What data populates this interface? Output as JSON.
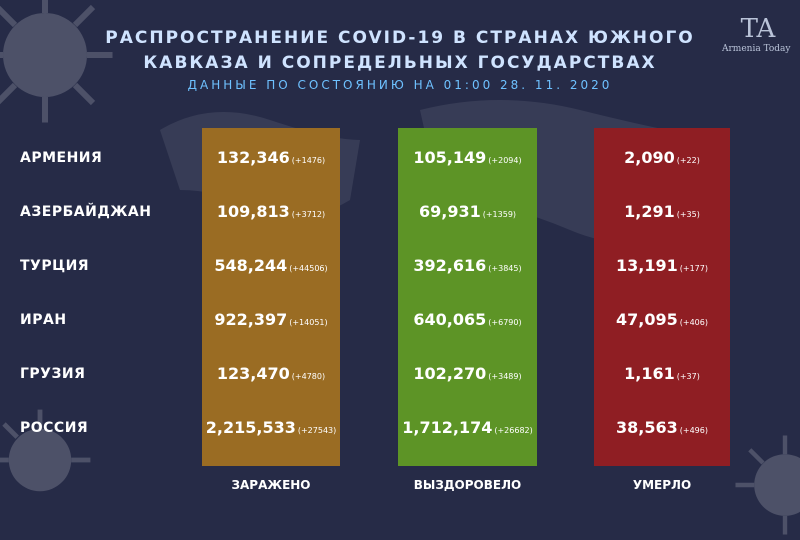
{
  "header": {
    "title_line1": "РАСПРОСТРАНЕНИЕ COVID-19 В СТРАНАХ ЮЖНОГО",
    "title_line2": "КАВКАЗА И СОПРЕДЕЛЬНЫХ ГОСУДАРСТВАХ",
    "subtitle": "ДАННЫЕ ПО СОСТОЯНИЮ НА 01:00   28. 11. 2020"
  },
  "logo": {
    "mark": "TA",
    "text": "Armenia Today"
  },
  "columns": {
    "infected": "ЗАРАЖЕНО",
    "recovered": "ВЫЗДОРОВЕЛО",
    "died": "УМЕРЛО"
  },
  "colors": {
    "infected": "#9a6c23",
    "recovered": "#5d9426",
    "died": "#8f1e23",
    "background": "#262b47"
  },
  "rows": [
    {
      "country": "АРМЕНИЯ",
      "infected": "132,346",
      "infected_delta": "(+1476)",
      "recovered": "105,149",
      "recovered_delta": "(+2094)",
      "died": "2,090",
      "died_delta": "(+22)"
    },
    {
      "country": "АЗЕРБАЙДЖАН",
      "infected": "109,813",
      "infected_delta": "(+3712)",
      "recovered": "69,931",
      "recovered_delta": "(+1359)",
      "died": "1,291",
      "died_delta": "(+35)"
    },
    {
      "country": "ТУРЦИЯ",
      "infected": "548,244",
      "infected_delta": "(+44506)",
      "recovered": "392,616",
      "recovered_delta": "(+3845)",
      "died": "13,191",
      "died_delta": "(+177)"
    },
    {
      "country": "ИРАН",
      "infected": "922,397",
      "infected_delta": "(+14051)",
      "recovered": "640,065",
      "recovered_delta": "(+6790)",
      "died": "47,095",
      "died_delta": "(+406)"
    },
    {
      "country": "ГРУЗИЯ",
      "infected": "123,470",
      "infected_delta": "(+4780)",
      "recovered": "102,270",
      "recovered_delta": "(+3489)",
      "died": "1,161",
      "died_delta": "(+37)"
    },
    {
      "country": "РОССИЯ",
      "infected": "2,215,533",
      "infected_delta": "(+27543)",
      "recovered": "1,712,174",
      "recovered_delta": "(+26682)",
      "died": "38,563",
      "died_delta": "(+496)"
    }
  ]
}
